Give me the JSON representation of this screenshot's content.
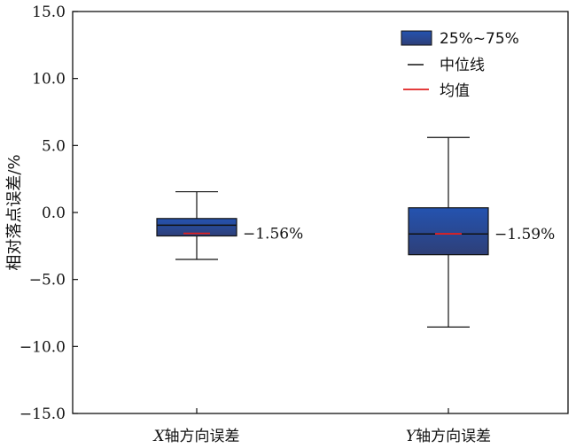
{
  "chart_data": {
    "type": "box",
    "ylabel": "相对落点误差/%",
    "ylim": [
      -15.0,
      15.0
    ],
    "yticks": [
      -15.0,
      -10.0,
      -5.0,
      0.0,
      5.0,
      10.0,
      15.0
    ],
    "ytick_labels": [
      "−15.0",
      "−10.0",
      "−5.0",
      "0.0",
      "5.0",
      "10.0",
      "15.0"
    ],
    "categories": [
      {
        "prefix": "X",
        "suffix": "轴方向误差"
      },
      {
        "prefix": "Y",
        "suffix": "轴方向误差"
      }
    ],
    "boxes": [
      {
        "whisker_low": -3.5,
        "q1": -1.75,
        "median": -0.95,
        "q3": -0.45,
        "whisker_high": 1.55,
        "mean": -1.56,
        "mean_label": "−1.56%"
      },
      {
        "whisker_low": -8.55,
        "q1": -3.15,
        "median": -1.6,
        "q3": 0.35,
        "whisker_high": 5.6,
        "mean": -1.59,
        "mean_label": "−1.59%"
      }
    ],
    "legend": {
      "position": "top-right",
      "items": [
        {
          "label": "25%~75%",
          "kind": "box"
        },
        {
          "label": "中位线",
          "kind": "median"
        },
        {
          "label": "均值",
          "kind": "mean"
        }
      ]
    },
    "colors": {
      "box_top": "#2453b0",
      "box_bottom": "#2e3f78",
      "median": "#111111",
      "mean": "#e02020",
      "axis": "#111111"
    }
  }
}
